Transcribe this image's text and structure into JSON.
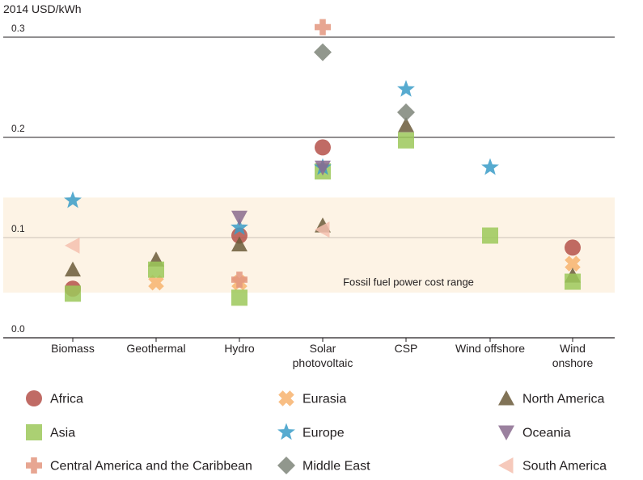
{
  "chart_data": {
    "type": "scatter",
    "ylabel": "2014 USD/kWh",
    "ylim": [
      0.0,
      0.3
    ],
    "y_ticks": [
      "0.0",
      "0.1",
      "0.2",
      "0.3"
    ],
    "categories": [
      [
        "Biomass"
      ],
      [
        "Geothermal"
      ],
      [
        "Hydro"
      ],
      [
        "Solar",
        "photovoltaic"
      ],
      [
        "CSP"
      ],
      [
        "Wind offshore"
      ],
      [
        "Wind",
        "onshore"
      ]
    ],
    "band": {
      "label": "Fossil fuel power cost range",
      "range": [
        0.045,
        0.14
      ],
      "color": "#fdf3e5"
    },
    "legend_position": "bottom",
    "series": [
      {
        "name": "Africa",
        "marker": "circle",
        "color": "#b5514a",
        "values": [
          0.049,
          null,
          0.102,
          0.19,
          null,
          null,
          0.09
        ]
      },
      {
        "name": "Eurasia",
        "marker": "cross-x",
        "color": "#f7b36f",
        "values": [
          null,
          0.055,
          0.055,
          null,
          null,
          null,
          0.074
        ]
      },
      {
        "name": "North America",
        "marker": "triangle-up",
        "color": "#6b5a3a",
        "values": [
          0.068,
          0.078,
          0.093,
          0.112,
          0.212,
          null,
          0.062
        ]
      },
      {
        "name": "Asia",
        "marker": "square",
        "color": "#9cc85a",
        "values": [
          0.044,
          0.068,
          0.04,
          0.166,
          0.197,
          0.102,
          0.056
        ]
      },
      {
        "name": "Europe",
        "marker": "star",
        "color": "#3a9cc8",
        "values": [
          0.137,
          null,
          0.11,
          0.17,
          0.248,
          0.17,
          null
        ]
      },
      {
        "name": "Oceania",
        "marker": "triangle-down",
        "color": "#8a6b8e",
        "values": [
          null,
          null,
          0.12,
          0.17,
          null,
          null,
          null
        ]
      },
      {
        "name": "Central America and the Caribbean",
        "marker": "plus",
        "color": "#e3977f",
        "values": [
          null,
          null,
          0.058,
          0.31,
          null,
          null,
          null
        ]
      },
      {
        "name": "Middle East",
        "marker": "diamond",
        "color": "#7e8579",
        "values": [
          null,
          null,
          null,
          0.285,
          0.225,
          null,
          null
        ]
      },
      {
        "name": "South America",
        "marker": "triangle-left",
        "color": "#f5bfaf",
        "values": [
          0.092,
          null,
          null,
          0.108,
          null,
          null,
          null
        ]
      }
    ]
  }
}
